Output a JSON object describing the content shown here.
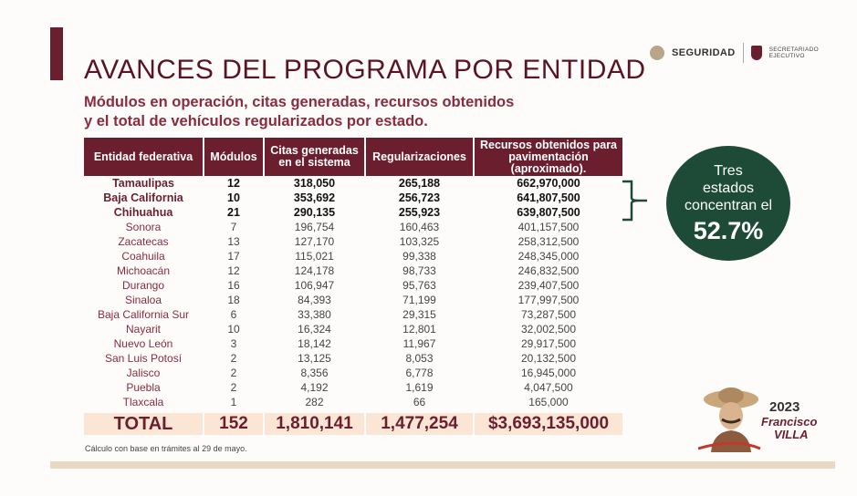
{
  "header": {
    "title": "AVANCES DEL PROGRAMA POR ENTIDAD",
    "subtitle_line1": "Módulos en operación, citas generadas, recursos obtenidos",
    "subtitle_line2": "y el total de vehículos regularizados por estado."
  },
  "logos": {
    "seguridad": "SEGURIDAD",
    "secretariado_line1": "SECRETARIADO",
    "secretariado_line2": "EJECUTIVO"
  },
  "table": {
    "headers": [
      "Entidad federativa",
      "Módulos",
      "Citas generadas en el sistema",
      "Regularizaciones",
      "Recursos obtenidos para pavimentación (aproximado)."
    ],
    "rows": [
      {
        "entidad": "Tamaulipas",
        "modulos": "12",
        "citas": "318,050",
        "regularizaciones": "265,188",
        "recursos": "662,970,000"
      },
      {
        "entidad": "Baja California",
        "modulos": "10",
        "citas": "353,692",
        "regularizaciones": "256,723",
        "recursos": "641,807,500"
      },
      {
        "entidad": "Chihuahua",
        "modulos": "21",
        "citas": "290,135",
        "regularizaciones": "255,923",
        "recursos": "639,807,500"
      },
      {
        "entidad": "Sonora",
        "modulos": "7",
        "citas": "196,754",
        "regularizaciones": "160,463",
        "recursos": "401,157,500"
      },
      {
        "entidad": "Zacatecas",
        "modulos": "13",
        "citas": "127,170",
        "regularizaciones": "103,325",
        "recursos": "258,312,500"
      },
      {
        "entidad": "Coahuila",
        "modulos": "17",
        "citas": "115,021",
        "regularizaciones": "99,338",
        "recursos": "248,345,000"
      },
      {
        "entidad": "Michoacán",
        "modulos": "12",
        "citas": "124,178",
        "regularizaciones": "98,733",
        "recursos": "246,832,500"
      },
      {
        "entidad": "Durango",
        "modulos": "16",
        "citas": "106,947",
        "regularizaciones": "95,763",
        "recursos": "239,407,500"
      },
      {
        "entidad": "Sinaloa",
        "modulos": "18",
        "citas": "84,393",
        "regularizaciones": "71,199",
        "recursos": "177,997,500"
      },
      {
        "entidad": "Baja California Sur",
        "modulos": "6",
        "citas": "33,380",
        "regularizaciones": "29,315",
        "recursos": "73,287,500"
      },
      {
        "entidad": "Nayarit",
        "modulos": "10",
        "citas": "16,324",
        "regularizaciones": "12,801",
        "recursos": "32,002,500"
      },
      {
        "entidad": "Nuevo León",
        "modulos": "3",
        "citas": "18,142",
        "regularizaciones": "11,967",
        "recursos": "29,917,500"
      },
      {
        "entidad": "San Luis Potosí",
        "modulos": "2",
        "citas": "13,125",
        "regularizaciones": "8,053",
        "recursos": "20,132,500"
      },
      {
        "entidad": "Jalisco",
        "modulos": "2",
        "citas": "8,356",
        "regularizaciones": "6,778",
        "recursos": "16,945,000"
      },
      {
        "entidad": "Puebla",
        "modulos": "2",
        "citas": "4,192",
        "regularizaciones": "1,619",
        "recursos": "4,047,500"
      },
      {
        "entidad": "Tlaxcala",
        "modulos": "1",
        "citas": "282",
        "regularizaciones": "66",
        "recursos": "165,000"
      }
    ],
    "total": {
      "entidad": "TOTAL",
      "modulos": "152",
      "citas": "1,810,141",
      "regularizaciones": "1,477,254",
      "recursos": "$3,693,135,000"
    }
  },
  "callout": {
    "line1": "Tres",
    "line2": "estados",
    "line3": "concentran el",
    "percent": "52.7%"
  },
  "footnote": "Cálculo con base en trámites al 29 de mayo.",
  "villa": {
    "year": "2023",
    "name_line1": "Francisco",
    "name_line2": "VILLA"
  },
  "colors": {
    "primary": "#6b1f2e",
    "callout": "#1d4b38",
    "total_bg": "#fbe6d6"
  }
}
